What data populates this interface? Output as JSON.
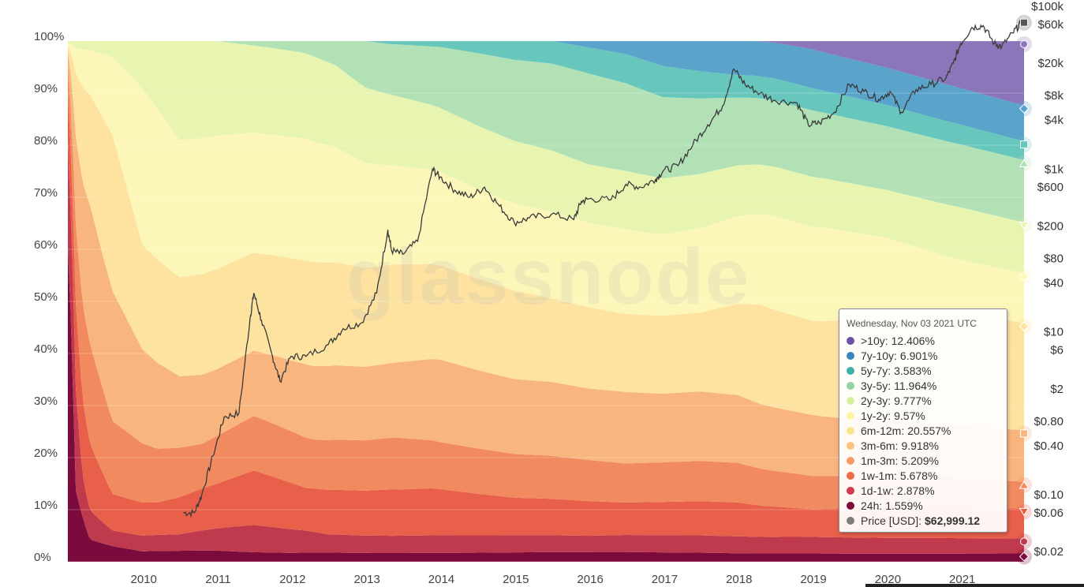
{
  "chart_data": {
    "type": "area",
    "title": "",
    "watermark": "glassnode",
    "stacking": "percent",
    "x_range": [
      2009.0,
      2021.85
    ],
    "x_ticks": [
      "2010",
      "2011",
      "2012",
      "2013",
      "2014",
      "2015",
      "2016",
      "2017",
      "2018",
      "2019",
      "2020",
      "2021"
    ],
    "y_left": {
      "ticks": [
        "0%",
        "10%",
        "20%",
        "30%",
        "40%",
        "50%",
        "60%",
        "70%",
        "80%",
        "90%",
        "100%"
      ],
      "range": [
        0,
        100
      ]
    },
    "y_right": {
      "scale": "log",
      "ticks": [
        "$100k",
        "$60k",
        "$20k",
        "$8k",
        "$4k",
        "$1k",
        "$600",
        "$200",
        "$80",
        "$40",
        "$10",
        "$6",
        "$2",
        "$0.80",
        "$0.40",
        "$0.10",
        "$0.06",
        "$0.02"
      ]
    },
    "series": [
      {
        "name": "24h",
        "color": "#7a0b3c",
        "values": [
          [
            2009.0,
            60
          ],
          [
            2009.1,
            9
          ],
          [
            2009.3,
            4
          ],
          [
            2009.6,
            3
          ],
          [
            2010.0,
            2
          ],
          [
            2011.0,
            2
          ],
          [
            2012.0,
            1.5
          ],
          [
            2014.0,
            1.5
          ],
          [
            2017.0,
            1.5
          ],
          [
            2020.0,
            1.5
          ],
          [
            2021.85,
            1.6
          ]
        ]
      },
      {
        "name": "1d-1w",
        "color": "#c03a4e",
        "values": [
          [
            2009.0,
            20
          ],
          [
            2009.2,
            6
          ],
          [
            2009.6,
            3
          ],
          [
            2010.5,
            3
          ],
          [
            2011.5,
            5
          ],
          [
            2012.5,
            3
          ],
          [
            2014.0,
            3
          ],
          [
            2016.0,
            2.5
          ],
          [
            2018.0,
            3
          ],
          [
            2020.0,
            3
          ],
          [
            2021.85,
            2.9
          ]
        ]
      },
      {
        "name": "1w-1m",
        "color": "#e8604a",
        "values": [
          [
            2009.0,
            10
          ],
          [
            2009.3,
            12
          ],
          [
            2009.6,
            7
          ],
          [
            2010.2,
            6
          ],
          [
            2011.0,
            8
          ],
          [
            2011.5,
            10
          ],
          [
            2012.2,
            7
          ],
          [
            2013.3,
            8
          ],
          [
            2013.9,
            8
          ],
          [
            2015.0,
            6
          ],
          [
            2016.5,
            5
          ],
          [
            2018.0,
            6
          ],
          [
            2019.0,
            5
          ],
          [
            2020.2,
            6
          ],
          [
            2021.85,
            5.7
          ]
        ]
      },
      {
        "name": "1m-3m",
        "color": "#f28a60",
        "values": [
          [
            2009.0,
            5
          ],
          [
            2009.3,
            18
          ],
          [
            2009.6,
            14
          ],
          [
            2010.2,
            10
          ],
          [
            2010.8,
            8
          ],
          [
            2011.5,
            10
          ],
          [
            2012.3,
            8
          ],
          [
            2013.4,
            9
          ],
          [
            2014.0,
            8
          ],
          [
            2015.0,
            7
          ],
          [
            2016.5,
            6
          ],
          [
            2018.0,
            7
          ],
          [
            2019.0,
            6
          ],
          [
            2020.2,
            6
          ],
          [
            2021.85,
            5.2
          ]
        ]
      },
      {
        "name": "3m-6m",
        "color": "#f8b57d",
        "values": [
          [
            2009.0,
            3
          ],
          [
            2009.3,
            25
          ],
          [
            2009.6,
            25
          ],
          [
            2010.0,
            18
          ],
          [
            2010.5,
            13
          ],
          [
            2011.0,
            12
          ],
          [
            2011.5,
            12
          ],
          [
            2012.3,
            12
          ],
          [
            2013.4,
            13
          ],
          [
            2014.0,
            14
          ],
          [
            2015.0,
            12
          ],
          [
            2016.0,
            11
          ],
          [
            2017.0,
            11
          ],
          [
            2018.0,
            12
          ],
          [
            2019.0,
            11
          ],
          [
            2020.2,
            10
          ],
          [
            2021.85,
            9.9
          ]
        ]
      },
      {
        "name": "6m-12m",
        "color": "#fde2a0",
        "values": [
          [
            2009.0,
            1
          ],
          [
            2009.3,
            20
          ],
          [
            2009.6,
            30
          ],
          [
            2010.0,
            20
          ],
          [
            2010.5,
            18
          ],
          [
            2011.0,
            18
          ],
          [
            2011.5,
            18
          ],
          [
            2012.2,
            17
          ],
          [
            2013.4,
            17
          ],
          [
            2014.0,
            16
          ],
          [
            2014.6,
            15
          ],
          [
            2015.5,
            13
          ],
          [
            2016.5,
            12
          ],
          [
            2017.5,
            13
          ],
          [
            2018.3,
            18
          ],
          [
            2019.0,
            17
          ],
          [
            2020.2,
            20
          ],
          [
            2020.8,
            22
          ],
          [
            2021.85,
            20.6
          ]
        ]
      },
      {
        "name": "1y-2y",
        "color": "#fdf6b9",
        "values": [
          [
            2009.0,
            0.5
          ],
          [
            2009.3,
            8
          ],
          [
            2009.6,
            15
          ],
          [
            2010.0,
            30
          ],
          [
            2010.5,
            25
          ],
          [
            2011.0,
            24
          ],
          [
            2011.5,
            22
          ],
          [
            2012.2,
            20
          ],
          [
            2013.0,
            18
          ],
          [
            2013.9,
            16
          ],
          [
            2015.0,
            14
          ],
          [
            2016.0,
            13
          ],
          [
            2017.0,
            13
          ],
          [
            2017.5,
            14
          ],
          [
            2018.5,
            17
          ],
          [
            2019.2,
            17
          ],
          [
            2020.0,
            15
          ],
          [
            2020.8,
            10
          ],
          [
            2021.85,
            9.6
          ]
        ]
      },
      {
        "name": "2y-3y",
        "color": "#e7f5b0",
        "values": [
          [
            2009.0,
            0.3
          ],
          [
            2009.6,
            3
          ],
          [
            2010.0,
            9
          ],
          [
            2010.5,
            18
          ],
          [
            2011.0,
            17
          ],
          [
            2011.5,
            16
          ],
          [
            2012.2,
            14
          ],
          [
            2013.0,
            13
          ],
          [
            2013.9,
            11
          ],
          [
            2015.0,
            10
          ],
          [
            2016.0,
            9
          ],
          [
            2017.0,
            9
          ],
          [
            2018.0,
            9
          ],
          [
            2019.0,
            9
          ],
          [
            2020.0,
            9
          ],
          [
            2021.0,
            10
          ],
          [
            2021.85,
            9.8
          ]
        ]
      },
      {
        "name": "3y-5y",
        "color": "#b2e1b6",
        "values": [
          [
            2009.0,
            0
          ],
          [
            2010.0,
            0
          ],
          [
            2010.5,
            0
          ],
          [
            2011.0,
            0
          ],
          [
            2011.3,
            0.5
          ],
          [
            2011.6,
            1
          ],
          [
            2012.2,
            2
          ],
          [
            2012.6,
            4
          ],
          [
            2013.0,
            8
          ],
          [
            2013.9,
            10
          ],
          [
            2014.5,
            12
          ],
          [
            2015.0,
            13
          ],
          [
            2016.0,
            14
          ],
          [
            2017.0,
            13
          ],
          [
            2018.0,
            12
          ],
          [
            2019.0,
            12
          ],
          [
            2020.0,
            12
          ],
          [
            2021.85,
            12.0
          ]
        ]
      },
      {
        "name": "5y-7y",
        "color": "#67c7bd",
        "values": [
          [
            2009.0,
            0
          ],
          [
            2011.0,
            0
          ],
          [
            2011.5,
            0
          ],
          [
            2012.0,
            0
          ],
          [
            2012.5,
            0
          ],
          [
            2013.0,
            0
          ],
          [
            2013.3,
            0.5
          ],
          [
            2014.0,
            1
          ],
          [
            2014.5,
            2
          ],
          [
            2015.0,
            3
          ],
          [
            2016.0,
            4
          ],
          [
            2017.0,
            5
          ],
          [
            2018.0,
            4
          ],
          [
            2019.0,
            4
          ],
          [
            2020.0,
            4
          ],
          [
            2021.85,
            3.6
          ]
        ]
      },
      {
        "name": "7y-10y",
        "color": "#5aa4cc",
        "values": [
          [
            2009.0,
            0
          ],
          [
            2012.0,
            0
          ],
          [
            2014.0,
            0
          ],
          [
            2015.0,
            0
          ],
          [
            2015.5,
            0
          ],
          [
            2016.0,
            1
          ],
          [
            2016.5,
            2
          ],
          [
            2017.0,
            4
          ],
          [
            2018.0,
            6
          ],
          [
            2019.0,
            7
          ],
          [
            2020.0,
            7
          ],
          [
            2021.85,
            6.9
          ]
        ]
      },
      {
        "name": ">10y",
        "color": "#8a76b8",
        "values": [
          [
            2009.0,
            0
          ],
          [
            2015.0,
            0
          ],
          [
            2017.0,
            0
          ],
          [
            2017.8,
            0
          ],
          [
            2018.2,
            0
          ],
          [
            2018.5,
            0.3
          ],
          [
            2019.0,
            1.5
          ],
          [
            2020.0,
            5
          ],
          [
            2021.0,
            9
          ],
          [
            2021.85,
            12.4
          ]
        ]
      }
    ],
    "price_series": {
      "name": "Price [USD]",
      "color": "#3a3a3a",
      "values": [
        [
          2010.55,
          0.06
        ],
        [
          2010.7,
          0.06
        ],
        [
          2010.8,
          0.1
        ],
        [
          2010.95,
          0.3
        ],
        [
          2011.1,
          0.9
        ],
        [
          2011.3,
          1.0
        ],
        [
          2011.45,
          15
        ],
        [
          2011.5,
          30
        ],
        [
          2011.6,
          14
        ],
        [
          2011.75,
          5
        ],
        [
          2011.85,
          2.5
        ],
        [
          2012.0,
          5
        ],
        [
          2012.2,
          5
        ],
        [
          2012.5,
          7
        ],
        [
          2012.7,
          11
        ],
        [
          2012.95,
          13
        ],
        [
          2013.15,
          30
        ],
        [
          2013.3,
          180
        ],
        [
          2013.35,
          100
        ],
        [
          2013.5,
          90
        ],
        [
          2013.7,
          130
        ],
        [
          2013.9,
          1000
        ],
        [
          2014.0,
          800
        ],
        [
          2014.2,
          550
        ],
        [
          2014.4,
          450
        ],
        [
          2014.6,
          600
        ],
        [
          2014.8,
          350
        ],
        [
          2015.0,
          220
        ],
        [
          2015.2,
          250
        ],
        [
          2015.5,
          280
        ],
        [
          2015.8,
          240
        ],
        [
          2015.9,
          400
        ],
        [
          2016.0,
          430
        ],
        [
          2016.3,
          420
        ],
        [
          2016.5,
          650
        ],
        [
          2016.7,
          600
        ],
        [
          2016.9,
          750
        ],
        [
          2017.0,
          950
        ],
        [
          2017.2,
          1100
        ],
        [
          2017.4,
          2000
        ],
        [
          2017.6,
          3500
        ],
        [
          2017.8,
          6000
        ],
        [
          2017.95,
          17000
        ],
        [
          2018.1,
          11000
        ],
        [
          2018.3,
          8500
        ],
        [
          2018.5,
          7000
        ],
        [
          2018.8,
          6500
        ],
        [
          2018.95,
          3500
        ],
        [
          2019.1,
          3700
        ],
        [
          2019.3,
          5000
        ],
        [
          2019.5,
          11000
        ],
        [
          2019.7,
          9000
        ],
        [
          2019.9,
          7200
        ],
        [
          2020.05,
          9000
        ],
        [
          2020.2,
          5000
        ],
        [
          2020.4,
          9500
        ],
        [
          2020.6,
          11000
        ],
        [
          2020.8,
          13000
        ],
        [
          2020.9,
          20000
        ],
        [
          2021.0,
          35000
        ],
        [
          2021.15,
          55000
        ],
        [
          2021.3,
          58000
        ],
        [
          2021.45,
          35000
        ],
        [
          2021.55,
          32000
        ],
        [
          2021.7,
          47000
        ],
        [
          2021.8,
          61000
        ],
        [
          2021.84,
          62999
        ]
      ]
    },
    "series_end_markers": [
      {
        "series": "Price [USD]",
        "shape": "square"
      },
      {
        "series": ">10y",
        "shape": "circle"
      },
      {
        "series": "7y-10y",
        "shape": "diamond"
      },
      {
        "series": "5y-7y",
        "shape": "square"
      },
      {
        "series": "3y-5y",
        "shape": "triangle-up"
      },
      {
        "series": "2y-3y",
        "shape": "triangle-down"
      },
      {
        "series": "1y-2y",
        "shape": "circle"
      },
      {
        "series": "6m-12m",
        "shape": "diamond"
      },
      {
        "series": "3m-6m",
        "shape": "square"
      },
      {
        "series": "1m-3m",
        "shape": "triangle-up"
      },
      {
        "series": "1w-1m",
        "shape": "triangle-down"
      },
      {
        "series": "1d-1w",
        "shape": "circle"
      },
      {
        "series": "24h",
        "shape": "diamond"
      }
    ]
  },
  "tooltip": {
    "date": "Wednesday, Nov 03 2021 UTC",
    "rows": [
      {
        "label": ">10y:",
        "value": "12.406%",
        "color": "#6b51a6",
        "bold": false
      },
      {
        "label": "7y-10y:",
        "value": "6.901%",
        "color": "#3a84bd",
        "bold": false
      },
      {
        "label": "5y-7y:",
        "value": "3.583%",
        "color": "#3fb0a8",
        "bold": false
      },
      {
        "label": "3y-5y:",
        "value": "11.964%",
        "color": "#95d3a2",
        "bold": false
      },
      {
        "label": "2y-3y:",
        "value": "9.777%",
        "color": "#d7eea0",
        "bold": false
      },
      {
        "label": "1y-2y:",
        "value": "9.57%",
        "color": "#fbf4a4",
        "bold": false
      },
      {
        "label": "6m-12m:",
        "value": "20.557%",
        "color": "#fde58f",
        "bold": false
      },
      {
        "label": "3m-6m:",
        "value": "9.918%",
        "color": "#f9c47e",
        "bold": false
      },
      {
        "label": "1m-3m:",
        "value": "5.209%",
        "color": "#f59c66",
        "bold": false
      },
      {
        "label": "1w-1m:",
        "value": "5.678%",
        "color": "#ee6c4a",
        "bold": false
      },
      {
        "label": "1d-1w:",
        "value": "2.878%",
        "color": "#cf3b4d",
        "bold": false
      },
      {
        "label": "24h:",
        "value": "1.559%",
        "color": "#7c0a3a",
        "bold": false
      },
      {
        "label": "Price [USD]:",
        "value": "$62,999.12",
        "color": "#7d7d7d",
        "bold": true
      }
    ]
  }
}
